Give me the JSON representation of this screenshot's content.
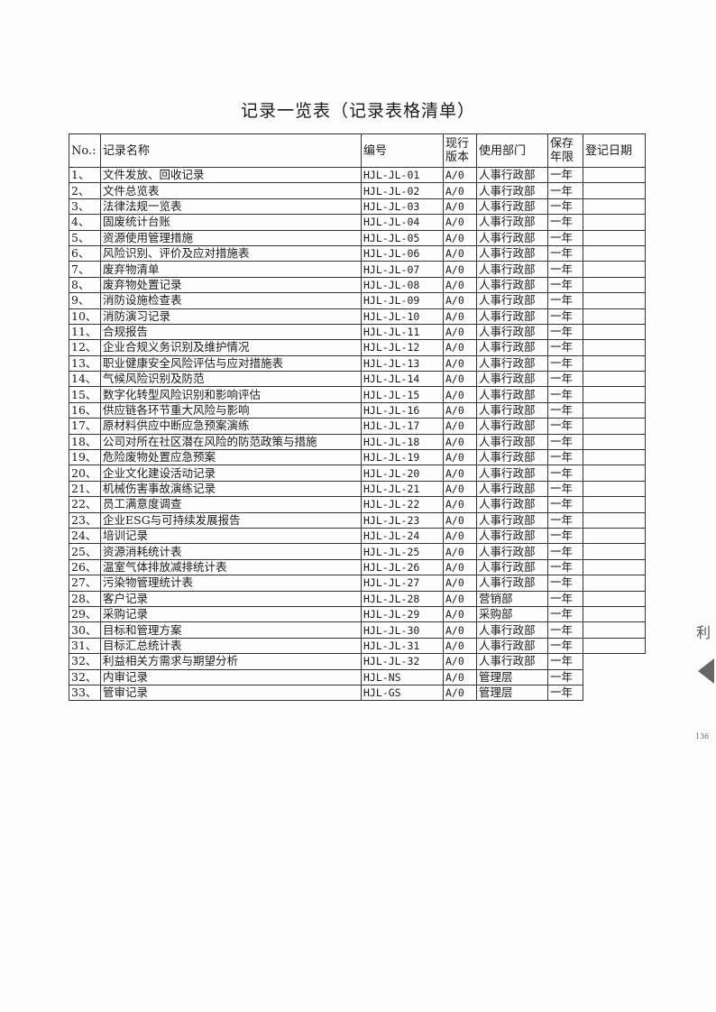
{
  "title": "记录一览表（记录表格清单）",
  "columns": [
    "No.:",
    "记录名称",
    "编号",
    "现行版本",
    "使用部门",
    "保存年限",
    "登记日期"
  ],
  "rows": [
    [
      "1、",
      "文件发放、回收记录",
      "HJL-JL-01",
      "A/0",
      "人事行政部",
      "一年",
      ""
    ],
    [
      "2、",
      "文件总览表",
      "HJL-JL-02",
      "A/0",
      "人事行政部",
      "一年",
      ""
    ],
    [
      "3、",
      "法律法规一览表",
      "HJL-JL-03",
      "A/0",
      "人事行政部",
      "一年",
      ""
    ],
    [
      "4、",
      "固废统计台账",
      "HJL-JL-04",
      "A/0",
      "人事行政部",
      "一年",
      ""
    ],
    [
      "5、",
      "资源使用管理措施",
      "HJL-JL-05",
      "A/0",
      "人事行政部",
      "一年",
      ""
    ],
    [
      "6、",
      "风险识别、评价及应对措施表",
      "HJL-JL-06",
      "A/0",
      "人事行政部",
      "一年",
      ""
    ],
    [
      "7、",
      "废弃物清单",
      "HJL-JL-07",
      "A/0",
      "人事行政部",
      "一年",
      ""
    ],
    [
      "8、",
      "废弃物处置记录",
      "HJL-JL-08",
      "A/0",
      "人事行政部",
      "一年",
      ""
    ],
    [
      "9、",
      "消防设施检查表",
      "HJL-JL-09",
      "A/0",
      "人事行政部",
      "一年",
      ""
    ],
    [
      "10、",
      "消防演习记录",
      "HJL-JL-10",
      "A/0",
      "人事行政部",
      "一年",
      ""
    ],
    [
      "11、",
      "合规报告",
      "HJL-JL-11",
      "A/0",
      "人事行政部",
      "一年",
      ""
    ],
    [
      "12、",
      "企业合规义务识别及维护情况",
      "HJL-JL-12",
      "A/0",
      "人事行政部",
      "一年",
      ""
    ],
    [
      "13、",
      "职业健康安全风险评估与应对措施表",
      "HJL-JL-13",
      "A/0",
      "人事行政部",
      "一年",
      ""
    ],
    [
      "14、",
      "气候风险识别及防范",
      "HJL-JL-14",
      "A/0",
      "人事行政部",
      "一年",
      ""
    ],
    [
      "15、",
      "数字化转型风险识别和影响评估",
      "HJL-JL-15",
      "A/0",
      "人事行政部",
      "一年",
      ""
    ],
    [
      "16、",
      "供应链各环节重大风险与影响",
      "HJL-JL-16",
      "A/0",
      "人事行政部",
      "一年",
      ""
    ],
    [
      "17、",
      "原材料供应中断应急预案演练",
      "HJL-JL-17",
      "A/0",
      "人事行政部",
      "一年",
      ""
    ],
    [
      "18、",
      "公司对所在社区潜在风险的防范政策与措施",
      "HJL-JL-18",
      "A/0",
      "人事行政部",
      "一年",
      ""
    ],
    [
      "19、",
      "危险废物处置应急预案",
      "HJL-JL-19",
      "A/0",
      "人事行政部",
      "一年",
      ""
    ],
    [
      "20、",
      "企业文化建设活动记录",
      "HJL-JL-20",
      "A/0",
      "人事行政部",
      "一年",
      ""
    ],
    [
      "21、",
      "机械伤害事故演练记录",
      "HJL-JL-21",
      "A/0",
      "人事行政部",
      "一年",
      ""
    ],
    [
      "22、",
      "员工满意度调查",
      "HJL-JL-22",
      "A/0",
      "人事行政部",
      "一年",
      ""
    ],
    [
      "23、",
      "企业ESG与可持续发展报告",
      "HJL-JL-23",
      "A/0",
      "人事行政部",
      "一年",
      ""
    ],
    [
      "24、",
      "培训记录",
      "HJL-JL-24",
      "A/0",
      "人事行政部",
      "一年",
      ""
    ],
    [
      "25、",
      "资源消耗统计表",
      "HJL-JL-25",
      "A/0",
      "人事行政部",
      "一年",
      ""
    ],
    [
      "26、",
      "温室气体排放减排统计表",
      "HJL-JL-26",
      "A/0",
      "人事行政部",
      "一年",
      ""
    ],
    [
      "27、",
      "污染物管理统计表",
      "HJL-JL-27",
      "A/0",
      "人事行政部",
      "一年",
      ""
    ],
    [
      "28、",
      "客户记录",
      "HJL-JL-28",
      "A/0",
      "营销部",
      "一年",
      ""
    ],
    [
      "29、",
      "采购记录",
      "HJL-JL-29",
      "A/0",
      "采购部",
      "一年",
      ""
    ],
    [
      "30、",
      "目标和管理方案",
      "HJL-JL-30",
      "A/0",
      "人事行政部",
      "一年",
      ""
    ],
    [
      "31、",
      "目标汇总统计表",
      "HJL-JL-31",
      "A/0",
      "人事行政部",
      "一年",
      ""
    ],
    [
      "32、",
      "利益相关方需求与期望分析",
      "HJL-JL-32",
      "A/0",
      "人事行政部",
      "一年",
      null
    ],
    [
      "32、",
      "内审记录",
      "HJL-NS",
      "A/0",
      "管理层",
      "一年",
      null
    ],
    [
      "33、",
      "管审记录",
      "HJL-GS",
      "A/0",
      "管理层",
      "一年",
      null
    ]
  ],
  "margin_marks": {
    "side_char": "利",
    "page_fragment": "136"
  }
}
